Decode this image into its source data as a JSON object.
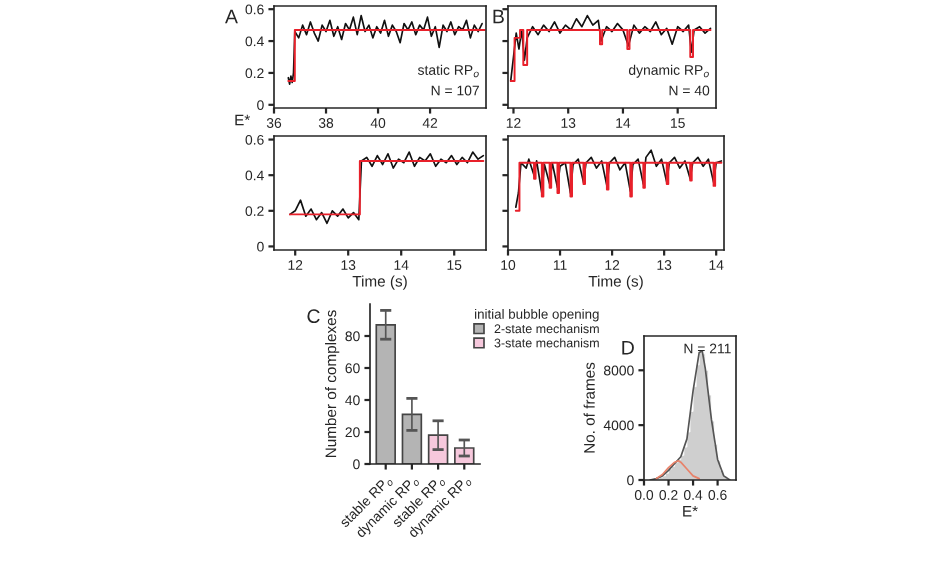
{
  "chart_data": [
    {
      "type": "line",
      "title": "A",
      "ylabel": "E*",
      "xlim": [
        36,
        44.15
      ],
      "xticks": [
        36,
        38,
        40,
        42
      ],
      "ylim": [
        -0.02,
        0.62
      ],
      "yticks": [
        0,
        0.2,
        0.4,
        0.6
      ],
      "annotations": [
        "static RP$_{o}$",
        "N = 107"
      ],
      "series": [
        {
          "color": "#111111",
          "x": [
            36.55,
            36.6,
            36.65,
            36.7,
            36.75,
            36.8,
            36.95,
            37.1,
            37.25,
            37.4,
            37.55,
            37.7,
            37.85,
            38.0,
            38.15,
            38.3,
            38.45,
            38.6,
            38.75,
            38.9,
            39.05,
            39.2,
            39.35,
            39.5,
            39.65,
            39.8,
            39.95,
            40.1,
            40.25,
            40.4,
            40.55,
            40.7,
            40.85,
            41.0,
            41.15,
            41.3,
            41.45,
            41.6,
            41.75,
            41.9,
            42.05,
            42.2,
            42.35,
            42.5,
            42.65,
            42.8,
            42.95,
            43.1,
            43.25,
            43.4,
            43.55,
            43.7,
            43.85,
            44.0
          ],
          "values": [
            0.17,
            0.13,
            0.18,
            0.14,
            0.2,
            0.46,
            0.42,
            0.5,
            0.44,
            0.52,
            0.45,
            0.4,
            0.5,
            0.46,
            0.53,
            0.43,
            0.49,
            0.41,
            0.51,
            0.47,
            0.55,
            0.44,
            0.56,
            0.46,
            0.5,
            0.42,
            0.49,
            0.45,
            0.53,
            0.43,
            0.5,
            0.46,
            0.39,
            0.51,
            0.47,
            0.52,
            0.44,
            0.5,
            0.47,
            0.55,
            0.43,
            0.49,
            0.36,
            0.5,
            0.46,
            0.52,
            0.44,
            0.49,
            0.47,
            0.53,
            0.42,
            0.5,
            0.46,
            0.51
          ]
        },
        {
          "type": "step",
          "color": "#e8202a",
          "x": [
            36.55,
            36.8,
            44.1
          ],
          "values": [
            0.15,
            0.47,
            0.47
          ]
        }
      ]
    },
    {
      "type": "line",
      "title": "B",
      "xlim": [
        11.9,
        15.7
      ],
      "xticks": [
        12,
        13,
        14,
        15
      ],
      "ylim": [
        -0.02,
        0.62
      ],
      "yticks": [
        0,
        0.2,
        0.4,
        0.6
      ],
      "tick_labels": "x",
      "annotations": [
        "dynamic RP$_{o}$",
        "N = 40"
      ],
      "series": [
        {
          "color": "#111111",
          "x": [
            11.95,
            12.0,
            12.05,
            12.1,
            12.15,
            12.2,
            12.25,
            12.35,
            12.45,
            12.55,
            12.65,
            12.75,
            12.85,
            12.95,
            13.05,
            13.15,
            13.25,
            13.35,
            13.45,
            13.55,
            13.6,
            13.7,
            13.8,
            13.9,
            14.0,
            14.1,
            14.2,
            14.3,
            14.4,
            14.5,
            14.6,
            14.7,
            14.8,
            14.9,
            15.0,
            15.1,
            15.2,
            15.25,
            15.3,
            15.4,
            15.5,
            15.6
          ],
          "values": [
            0.15,
            0.3,
            0.45,
            0.35,
            0.47,
            0.28,
            0.42,
            0.49,
            0.44,
            0.5,
            0.46,
            0.52,
            0.45,
            0.5,
            0.47,
            0.54,
            0.49,
            0.56,
            0.5,
            0.53,
            0.4,
            0.49,
            0.46,
            0.51,
            0.47,
            0.37,
            0.5,
            0.45,
            0.49,
            0.46,
            0.52,
            0.44,
            0.48,
            0.38,
            0.49,
            0.46,
            0.5,
            0.33,
            0.47,
            0.49,
            0.45,
            0.48
          ]
        },
        {
          "type": "step",
          "color": "#e8202a",
          "x": [
            11.95,
            12.02,
            12.12,
            12.18,
            12.25,
            13.58,
            13.62,
            14.08,
            14.12,
            15.23,
            15.28,
            15.6
          ],
          "values": [
            0.15,
            0.42,
            0.47,
            0.25,
            0.47,
            0.38,
            0.47,
            0.35,
            0.47,
            0.3,
            0.47,
            0.47
          ]
        }
      ]
    },
    {
      "type": "line",
      "xlabel": "Time (s)",
      "xlim": [
        11.6,
        15.6
      ],
      "xticks": [
        12,
        13,
        14,
        15
      ],
      "ylim": [
        -0.02,
        0.62
      ],
      "yticks": [
        0,
        0.2,
        0.4,
        0.6
      ],
      "series": [
        {
          "color": "#111111",
          "x": [
            11.9,
            12.0,
            12.1,
            12.2,
            12.3,
            12.4,
            12.5,
            12.6,
            12.7,
            12.8,
            12.9,
            13.0,
            13.1,
            13.2,
            13.25,
            13.35,
            13.45,
            13.55,
            13.65,
            13.75,
            13.85,
            13.95,
            14.05,
            14.15,
            14.25,
            14.35,
            14.45,
            14.55,
            14.65,
            14.75,
            14.85,
            14.95,
            15.05,
            15.15,
            15.25,
            15.35,
            15.45,
            15.55
          ],
          "values": [
            0.18,
            0.2,
            0.26,
            0.17,
            0.21,
            0.15,
            0.19,
            0.13,
            0.2,
            0.17,
            0.21,
            0.16,
            0.19,
            0.15,
            0.48,
            0.5,
            0.45,
            0.51,
            0.46,
            0.52,
            0.44,
            0.49,
            0.47,
            0.53,
            0.45,
            0.5,
            0.48,
            0.52,
            0.45,
            0.49,
            0.47,
            0.51,
            0.46,
            0.5,
            0.47,
            0.53,
            0.49,
            0.51
          ]
        },
        {
          "type": "step",
          "color": "#e8202a",
          "x": [
            11.9,
            13.22,
            15.55
          ],
          "values": [
            0.18,
            0.48,
            0.48
          ]
        }
      ]
    },
    {
      "type": "line",
      "xlabel": "Time (s)",
      "xlim": [
        10,
        14.15
      ],
      "xticks": [
        10,
        11,
        12,
        13,
        14
      ],
      "ylim": [
        -0.02,
        0.62
      ],
      "yticks": [
        0,
        0.2,
        0.4,
        0.6
      ],
      "tick_labels": "x",
      "series": [
        {
          "color": "#111111",
          "x": [
            10.15,
            10.2,
            10.25,
            10.35,
            10.4,
            10.5,
            10.55,
            10.65,
            10.7,
            10.8,
            10.85,
            10.95,
            11.0,
            11.1,
            11.2,
            11.25,
            11.35,
            11.45,
            11.5,
            11.6,
            11.7,
            11.8,
            11.9,
            11.95,
            12.05,
            12.15,
            12.25,
            12.35,
            12.4,
            12.5,
            12.6,
            12.65,
            12.75,
            12.85,
            12.95,
            13.05,
            13.1,
            13.2,
            13.3,
            13.4,
            13.5,
            13.55,
            13.65,
            13.75,
            13.85,
            13.95,
            14.0,
            14.1
          ],
          "values": [
            0.22,
            0.3,
            0.47,
            0.44,
            0.49,
            0.4,
            0.48,
            0.3,
            0.46,
            0.35,
            0.47,
            0.33,
            0.45,
            0.47,
            0.3,
            0.46,
            0.49,
            0.36,
            0.47,
            0.5,
            0.44,
            0.48,
            0.34,
            0.47,
            0.5,
            0.43,
            0.47,
            0.31,
            0.46,
            0.49,
            0.35,
            0.5,
            0.54,
            0.45,
            0.49,
            0.36,
            0.47,
            0.5,
            0.44,
            0.48,
            0.38,
            0.47,
            0.5,
            0.45,
            0.49,
            0.36,
            0.47,
            0.48
          ]
        },
        {
          "type": "step",
          "color": "#e8202a",
          "x": [
            10.15,
            10.22,
            10.5,
            10.53,
            10.65,
            10.68,
            10.8,
            10.83,
            10.95,
            10.98,
            11.2,
            11.23,
            11.45,
            11.48,
            11.9,
            11.93,
            12.35,
            12.38,
            12.6,
            12.63,
            13.05,
            13.08,
            13.5,
            13.53,
            13.95,
            13.98,
            14.1
          ],
          "values": [
            0.2,
            0.47,
            0.38,
            0.47,
            0.28,
            0.47,
            0.33,
            0.47,
            0.3,
            0.47,
            0.28,
            0.47,
            0.35,
            0.47,
            0.32,
            0.47,
            0.28,
            0.47,
            0.33,
            0.47,
            0.35,
            0.47,
            0.37,
            0.47,
            0.34,
            0.47,
            0.47
          ]
        }
      ]
    },
    {
      "type": "bar",
      "title": "C",
      "ylabel": "Number of complexes",
      "legend_title": "initial bubble opening",
      "legend": "top right",
      "categories": [
        "stable RP$_{o}$",
        "dynamic RP$_{o}$",
        "stable RP$_{o}$",
        "dynamic RP$_{o}$"
      ],
      "ylim": [
        0,
        100
      ],
      "yticks": [
        0,
        20,
        40,
        60,
        80
      ],
      "series": [
        {
          "name": "2-state mechanism",
          "color": "#b4b4b4",
          "values": [
            87,
            31,
            null,
            null
          ],
          "errors": [
            9,
            10,
            null,
            null
          ]
        },
        {
          "name": "3-state mechanism",
          "color": "#f6c8dc",
          "values": [
            null,
            null,
            18,
            10
          ],
          "errors": [
            null,
            null,
            9,
            5
          ]
        }
      ]
    },
    {
      "type": "histogram",
      "title": "D",
      "xlabel": "E*",
      "ylabel": "No. of frames",
      "annotations": [
        "N = 211"
      ],
      "color": "#cfcfcf",
      "bins": [
        0.0,
        0.025,
        0.05,
        0.075,
        0.1,
        0.125,
        0.15,
        0.175,
        0.2,
        0.225,
        0.25,
        0.275,
        0.3,
        0.325,
        0.35,
        0.375,
        0.4,
        0.425,
        0.45,
        0.475,
        0.5,
        0.525,
        0.55,
        0.575,
        0.6,
        0.625,
        0.65,
        0.675,
        0.7,
        0.725,
        0.75
      ],
      "values": [
        0,
        0,
        0,
        0,
        100,
        200,
        300,
        500,
        800,
        1000,
        1300,
        1500,
        1800,
        2400,
        3500,
        5000,
        6800,
        8400,
        9400,
        9200,
        8000,
        6200,
        4300,
        2600,
        1400,
        700,
        300,
        100,
        0,
        0
      ],
      "xlim": [
        0,
        0.75
      ],
      "xticks": [
        {
          "value": 0,
          "label": "0.0"
        },
        0.2,
        0.4,
        0.6
      ],
      "ylim": [
        0,
        10500
      ],
      "yticks": [
        0,
        4000,
        8000
      ],
      "series": [
        {
          "type": "line",
          "color": "#555555",
          "x": [
            0.05,
            0.1,
            0.15,
            0.2,
            0.25,
            0.3,
            0.35,
            0.4,
            0.45,
            0.475,
            0.5,
            0.55,
            0.6,
            0.65,
            0.7
          ],
          "values": [
            0,
            100,
            300,
            700,
            1200,
            1700,
            3000,
            6500,
            9300,
            9400,
            8100,
            4400,
            1500,
            300,
            0
          ]
        },
        {
          "type": "line",
          "color": "#e8826a",
          "x": [
            0.1,
            0.15,
            0.2,
            0.25,
            0.28,
            0.3,
            0.35,
            0.4,
            0.45
          ],
          "values": [
            100,
            400,
            900,
            1300,
            1400,
            1300,
            800,
            300,
            100
          ]
        }
      ]
    }
  ]
}
